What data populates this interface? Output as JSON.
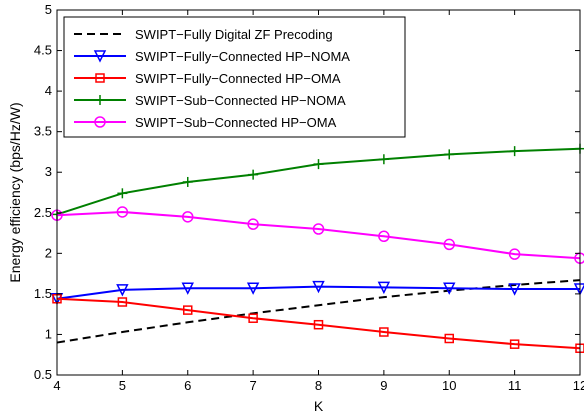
{
  "chart_data": {
    "type": "line",
    "title": "",
    "xlabel": "K",
    "ylabel": "Energy efficiency (bps/Hz/W)",
    "xlim": [
      4,
      12
    ],
    "ylim": [
      0.5,
      5
    ],
    "xticks": [
      4,
      5,
      6,
      7,
      8,
      9,
      10,
      11,
      12
    ],
    "yticks": [
      0.5,
      1,
      1.5,
      2,
      2.5,
      3,
      3.5,
      4,
      4.5,
      5
    ],
    "ytick_labels": [
      "0.5",
      "1",
      "1.5",
      "2",
      "2.5",
      "3",
      "3.5",
      "4",
      "4.5",
      "5"
    ],
    "grid": false,
    "legend_position": "top-left",
    "x": [
      4,
      5,
      6,
      7,
      8,
      9,
      10,
      11,
      12
    ],
    "series": [
      {
        "name": "SWIPT−Fully Digital ZF Precoding",
        "color": "#000000",
        "dash": "dashed",
        "marker": "none",
        "values": [
          0.9,
          1.03,
          1.15,
          1.26,
          1.36,
          1.46,
          1.54,
          1.61,
          1.67
        ]
      },
      {
        "name": "SWIPT−Fully−Connected HP−NOMA",
        "color": "#0000ff",
        "dash": "solid",
        "marker": "triangle-down",
        "values": [
          1.44,
          1.55,
          1.57,
          1.57,
          1.59,
          1.58,
          1.57,
          1.56,
          1.56
        ]
      },
      {
        "name": "SWIPT−Fully−Connected HP−OMA",
        "color": "#ff0000",
        "dash": "solid",
        "marker": "square",
        "values": [
          1.44,
          1.4,
          1.3,
          1.2,
          1.12,
          1.03,
          0.95,
          0.88,
          0.83
        ]
      },
      {
        "name": "SWIPT−Sub−Connected HP−NOMA",
        "color": "#008000",
        "dash": "solid",
        "marker": "plus",
        "values": [
          2.48,
          2.74,
          2.88,
          2.97,
          3.1,
          3.16,
          3.22,
          3.26,
          3.29
        ]
      },
      {
        "name": "SWIPT−Sub−Connected HP−OMA",
        "color": "#ff00ff",
        "dash": "solid",
        "marker": "circle",
        "values": [
          2.47,
          2.51,
          2.45,
          2.36,
          2.3,
          2.21,
          2.11,
          1.99,
          1.94
        ]
      }
    ]
  }
}
